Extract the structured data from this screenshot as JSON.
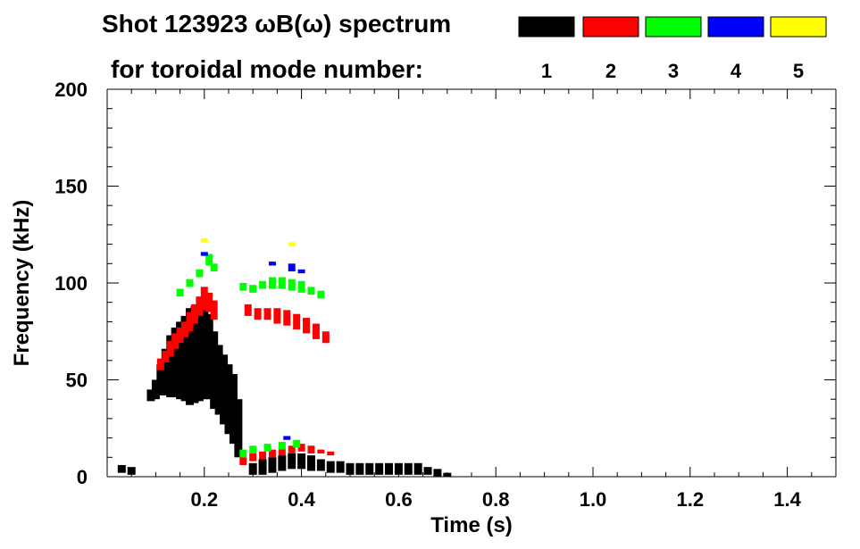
{
  "chart_data": {
    "type": "heatmap",
    "title_line1": "Shot 123923 ωB(ω) spectrum",
    "title_line2": "for toroidal mode number:",
    "xlabel": "Time (s)",
    "ylabel": "Frequency (kHz)",
    "xlim": [
      0.0,
      1.5
    ],
    "ylim": [
      0,
      200
    ],
    "x_ticks": [
      0.2,
      0.4,
      0.6,
      0.8,
      1.0,
      1.2,
      1.4
    ],
    "x_tick_labels": [
      "0.2",
      "0.4",
      "0.6",
      "0.8",
      "1.0",
      "1.2",
      "1.4"
    ],
    "y_ticks": [
      0,
      50,
      100,
      150,
      200
    ],
    "y_tick_labels": [
      "0",
      "50",
      "100",
      "150",
      "200"
    ],
    "legend": [
      {
        "label": "1",
        "color": "#000000"
      },
      {
        "label": "2",
        "color": "#ff0000"
      },
      {
        "label": "3",
        "color": "#00ff00"
      },
      {
        "label": "4",
        "color": "#0000ff"
      },
      {
        "label": "5",
        "color": "#ffff00"
      }
    ],
    "series": [
      {
        "name": "1",
        "color": "#000000",
        "points": [
          [
            0.09,
            42,
            3
          ],
          [
            0.1,
            45,
            5
          ],
          [
            0.11,
            50,
            8
          ],
          [
            0.12,
            54,
            12
          ],
          [
            0.13,
            57,
            16
          ],
          [
            0.14,
            59,
            18
          ],
          [
            0.15,
            60,
            20
          ],
          [
            0.16,
            61,
            22
          ],
          [
            0.17,
            62,
            25
          ],
          [
            0.18,
            63,
            25
          ],
          [
            0.19,
            64,
            25
          ],
          [
            0.2,
            65,
            25
          ],
          [
            0.21,
            62,
            22
          ],
          [
            0.22,
            55,
            20
          ],
          [
            0.23,
            50,
            18
          ],
          [
            0.24,
            45,
            18
          ],
          [
            0.25,
            40,
            18
          ],
          [
            0.26,
            35,
            18
          ],
          [
            0.27,
            25,
            15
          ],
          [
            0.3,
            4,
            3
          ],
          [
            0.32,
            5,
            4
          ],
          [
            0.34,
            6,
            4
          ],
          [
            0.36,
            7,
            4
          ],
          [
            0.38,
            8,
            4
          ],
          [
            0.4,
            8,
            4
          ],
          [
            0.42,
            7,
            4
          ],
          [
            0.44,
            6,
            3
          ],
          [
            0.46,
            5,
            3
          ],
          [
            0.48,
            5,
            3
          ],
          [
            0.5,
            4,
            3
          ],
          [
            0.52,
            4,
            3
          ],
          [
            0.54,
            4,
            3
          ],
          [
            0.56,
            4,
            3
          ],
          [
            0.58,
            4,
            3
          ],
          [
            0.6,
            4,
            3
          ],
          [
            0.62,
            4,
            3
          ],
          [
            0.64,
            4,
            3
          ],
          [
            0.66,
            3,
            2
          ],
          [
            0.68,
            2,
            2
          ],
          [
            0.7,
            1,
            1
          ],
          [
            0.05,
            3,
            2
          ],
          [
            0.03,
            4,
            2
          ]
        ]
      },
      {
        "name": "2",
        "color": "#ff0000",
        "points": [
          [
            0.11,
            58,
            3
          ],
          [
            0.12,
            62,
            3
          ],
          [
            0.13,
            66,
            4
          ],
          [
            0.14,
            70,
            4
          ],
          [
            0.15,
            73,
            4
          ],
          [
            0.16,
            76,
            4
          ],
          [
            0.17,
            80,
            5
          ],
          [
            0.18,
            84,
            5
          ],
          [
            0.19,
            88,
            5
          ],
          [
            0.2,
            92,
            6
          ],
          [
            0.21,
            90,
            5
          ],
          [
            0.22,
            86,
            5
          ],
          [
            0.29,
            86,
            3
          ],
          [
            0.31,
            84,
            3
          ],
          [
            0.33,
            84,
            3
          ],
          [
            0.35,
            83,
            4
          ],
          [
            0.37,
            82,
            4
          ],
          [
            0.39,
            80,
            4
          ],
          [
            0.41,
            78,
            4
          ],
          [
            0.43,
            75,
            4
          ],
          [
            0.45,
            72,
            3
          ],
          [
            0.28,
            8,
            2
          ],
          [
            0.3,
            10,
            2
          ],
          [
            0.32,
            11,
            2
          ],
          [
            0.34,
            12,
            2
          ],
          [
            0.36,
            13,
            2
          ],
          [
            0.38,
            14,
            2
          ],
          [
            0.4,
            15,
            2
          ],
          [
            0.42,
            14,
            2
          ],
          [
            0.44,
            13,
            1
          ],
          [
            0.46,
            12,
            1
          ]
        ]
      },
      {
        "name": "3",
        "color": "#00ff00",
        "points": [
          [
            0.15,
            95,
            2
          ],
          [
            0.17,
            100,
            2
          ],
          [
            0.19,
            105,
            2
          ],
          [
            0.21,
            112,
            3
          ],
          [
            0.22,
            108,
            2
          ],
          [
            0.28,
            98,
            2
          ],
          [
            0.3,
            97,
            2
          ],
          [
            0.32,
            99,
            2
          ],
          [
            0.34,
            100,
            3
          ],
          [
            0.36,
            100,
            3
          ],
          [
            0.38,
            99,
            3
          ],
          [
            0.4,
            98,
            3
          ],
          [
            0.42,
            96,
            2
          ],
          [
            0.44,
            94,
            2
          ],
          [
            0.28,
            12,
            2
          ],
          [
            0.3,
            14,
            2
          ],
          [
            0.33,
            15,
            2
          ],
          [
            0.36,
            16,
            2
          ],
          [
            0.39,
            17,
            2
          ]
        ]
      },
      {
        "name": "4",
        "color": "#0000ff",
        "points": [
          [
            0.2,
            115,
            1
          ],
          [
            0.34,
            110,
            1
          ],
          [
            0.38,
            108,
            2
          ],
          [
            0.4,
            106,
            1
          ],
          [
            0.37,
            20,
            1
          ]
        ]
      },
      {
        "name": "5",
        "color": "#ffff00",
        "points": [
          [
            0.38,
            120,
            1
          ],
          [
            0.2,
            122,
            1
          ]
        ]
      }
    ]
  }
}
